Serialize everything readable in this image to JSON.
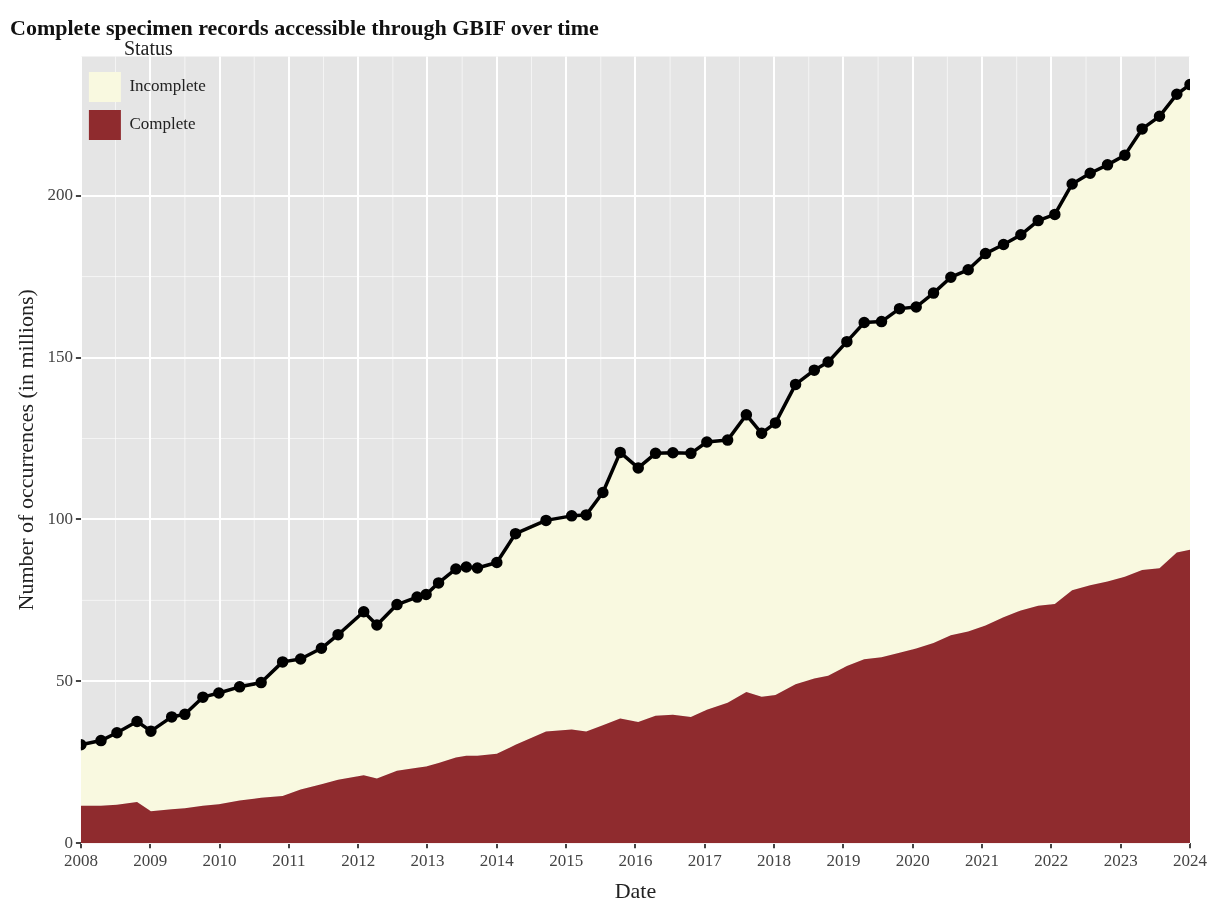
{
  "chart_data": {
    "type": "area",
    "title": "Complete specimen records accessible through GBIF over time",
    "xlabel": "Date",
    "ylabel": "Number of occurrences (in millions)",
    "legend_title": "Status",
    "legend": "top left",
    "grid": true,
    "stacked": true,
    "x": [
      2008.0,
      2008.29,
      2008.52,
      2008.81,
      2009.01,
      2009.31,
      2009.5,
      2009.76,
      2009.99,
      2010.29,
      2010.6,
      2010.91,
      2011.17,
      2011.47,
      2011.71,
      2012.08,
      2012.27,
      2012.56,
      2012.85,
      2012.98,
      2013.16,
      2013.41,
      2013.56,
      2013.72,
      2014.0,
      2014.27,
      2014.71,
      2015.08,
      2015.29,
      2015.53,
      2015.78,
      2016.04,
      2016.29,
      2016.54,
      2016.8,
      2017.03,
      2017.33,
      2017.6,
      2017.82,
      2018.02,
      2018.31,
      2018.58,
      2018.78,
      2019.05,
      2019.3,
      2019.55,
      2019.81,
      2020.05,
      2020.3,
      2020.55,
      2020.8,
      2021.05,
      2021.31,
      2021.56,
      2021.81,
      2022.05,
      2022.3,
      2022.56,
      2022.81,
      2023.06,
      2023.31,
      2023.56,
      2023.81,
      2024.0
    ],
    "xlim": [
      2008,
      2024
    ],
    "xticks": [
      2008,
      2009,
      2010,
      2011,
      2012,
      2013,
      2014,
      2015,
      2016,
      2017,
      2018,
      2019,
      2020,
      2021,
      2022,
      2023,
      2024
    ],
    "ylim": [
      0,
      243
    ],
    "yticks": [
      0,
      50,
      100,
      150,
      200
    ],
    "series": [
      {
        "name": "Complete",
        "color": "#8f2b2e",
        "values": [
          11.6,
          11.6,
          11.9,
          12.7,
          9.9,
          10.5,
          10.8,
          11.6,
          12.0,
          13.2,
          14.0,
          14.6,
          16.6,
          18.2,
          19.6,
          21.0,
          20.0,
          22.4,
          23.3,
          23.7,
          24.8,
          26.5,
          27.0,
          27.0,
          27.6,
          30.4,
          34.5,
          35.1,
          34.5,
          36.4,
          38.5,
          37.4,
          39.4,
          39.7,
          39.0,
          41.2,
          43.4,
          46.7,
          45.2,
          45.8,
          49.1,
          50.9,
          51.7,
          54.7,
          56.8,
          57.4,
          58.8,
          60.1,
          61.8,
          64.2,
          65.4,
          67.2,
          69.8,
          71.9,
          73.3,
          73.9,
          78.1,
          79.7,
          80.8,
          82.3,
          84.4,
          84.9,
          89.8,
          90.6
        ]
      },
      {
        "name": "Incomplete",
        "color": "#f9f9e0",
        "marker": "circle",
        "line_style": "solid",
        "values": [
          18.8,
          20.1,
          22.2,
          24.9,
          24.7,
          28.5,
          29.0,
          33.5,
          34.4,
          35.1,
          35.6,
          41.4,
          40.3,
          42.0,
          44.8,
          50.5,
          47.4,
          51.3,
          52.7,
          53.1,
          55.6,
          58.2,
          58.3,
          58.0,
          59.1,
          65.2,
          65.2,
          66.0,
          66.9,
          71.9,
          82.2,
          78.5,
          81.0,
          80.9,
          81.4,
          82.7,
          81.1,
          85.6,
          81.4,
          84.0,
          92.6,
          95.2,
          96.9,
          100.2,
          104.0,
          103.7,
          106.3,
          105.5,
          108.1,
          110.6,
          111.7,
          114.9,
          115.1,
          116.0,
          119.0,
          120.3,
          125.5,
          127.2,
          128.7,
          130.2,
          136.2,
          139.6,
          141.5,
          143.7
        ]
      }
    ]
  }
}
